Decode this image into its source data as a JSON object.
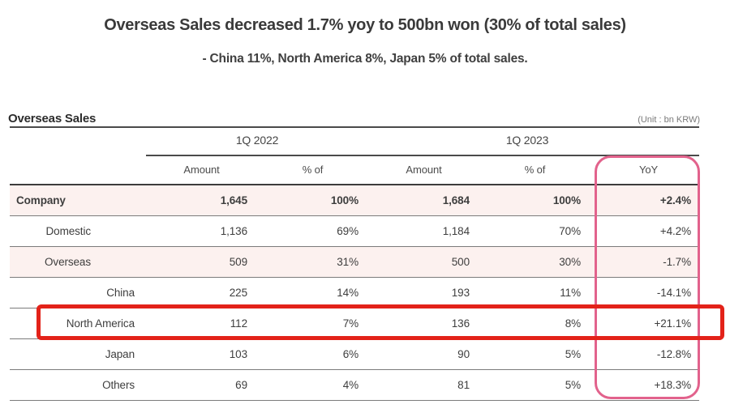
{
  "title": "Overseas Sales decreased 1.7% yoy to 500bn won (30% of total sales)",
  "subtitle": "- China 11%, North America 8%, Japan 5% of total sales.",
  "table": {
    "section_title": "Overseas Sales",
    "unit_note": "(Unit : bn KRW)",
    "period_headers": [
      "1Q 2022",
      "1Q 2023"
    ],
    "column_headers": [
      "Amount",
      "% of",
      "Amount",
      "% of",
      "YoY"
    ],
    "rows": [
      {
        "label": "Company",
        "values": [
          "1,645",
          "100%",
          "1,684",
          "100%",
          "+2.4%"
        ]
      },
      {
        "label": "Domestic",
        "values": [
          "1,136",
          "69%",
          "1,184",
          "70%",
          "+4.2%"
        ]
      },
      {
        "label": "Overseas",
        "values": [
          "509",
          "31%",
          "500",
          "30%",
          "-1.7%"
        ]
      },
      {
        "label": "China",
        "values": [
          "225",
          "14%",
          "193",
          "11%",
          "-14.1%"
        ]
      },
      {
        "label": "North America",
        "values": [
          "112",
          "7%",
          "136",
          "8%",
          "+21.1%"
        ]
      },
      {
        "label": "Japan",
        "values": [
          "103",
          "6%",
          "90",
          "5%",
          "-12.8%"
        ]
      },
      {
        "label": "Others",
        "values": [
          "69",
          "4%",
          "81",
          "5%",
          "+18.3%"
        ]
      }
    ],
    "highlights": {
      "yoy_column_outline_color": "#e2628c",
      "north_america_row_outline_color": "#e32219",
      "shaded_row_background": "#fcf1ef",
      "shaded_rows": [
        "Company",
        "Overseas"
      ],
      "outlined_row": "North America",
      "outlined_column": "YoY"
    }
  }
}
